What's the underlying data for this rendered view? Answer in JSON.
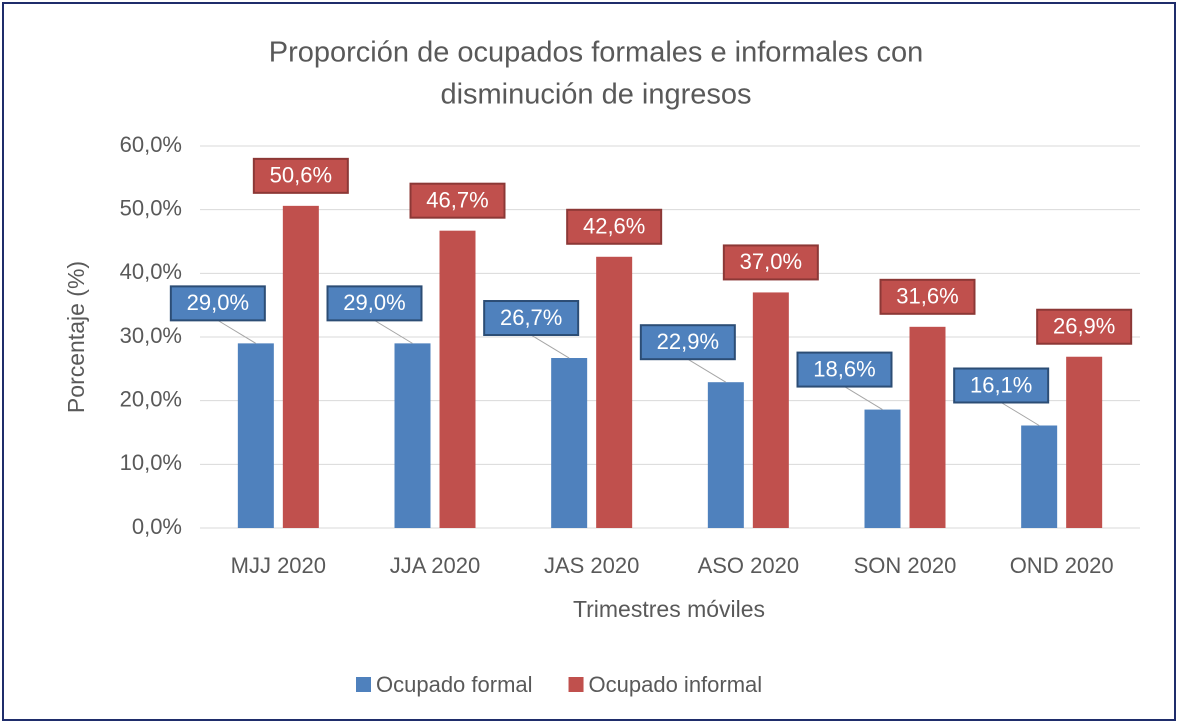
{
  "chart_data": {
    "type": "bar",
    "title": "Proporción de ocupados formales e informales con disminución de ingresos",
    "title_lines": [
      "Proporción de ocupados formales e informales con",
      "disminución de ingresos"
    ],
    "x_label": "Trimestres móviles",
    "y_label": "Porcentaje (%)",
    "categories": [
      "MJJ 2020",
      "JJA 2020",
      "JAS 2020",
      "ASO 2020",
      "SON 2020",
      "OND 2020"
    ],
    "series": [
      {
        "name": "Ocupado formal",
        "color": "#4f81bd",
        "values": [
          29.0,
          29.0,
          26.7,
          22.9,
          18.6,
          16.1
        ],
        "value_labels": [
          "29,0%",
          "29,0%",
          "26,7%",
          "22,9%",
          "18,6%",
          "16,1%"
        ]
      },
      {
        "name": "Ocupado informal",
        "color": "#c0504d",
        "values": [
          50.6,
          46.7,
          42.6,
          37.0,
          31.6,
          26.9
        ],
        "value_labels": [
          "50,6%",
          "46,7%",
          "42,6%",
          "37,0%",
          "31,6%",
          "26,9%"
        ]
      }
    ],
    "ylim": [
      0,
      60
    ],
    "yticks": [
      {
        "value": 0,
        "label": "0,0%"
      },
      {
        "value": 10,
        "label": "10,0%"
      },
      {
        "value": 20,
        "label": "20,0%"
      },
      {
        "value": 30,
        "label": "30,0%"
      },
      {
        "value": 40,
        "label": "40,0%"
      },
      {
        "value": 50,
        "label": "50,0%"
      },
      {
        "value": 60,
        "label": "60,0%"
      }
    ],
    "grid": true,
    "legend": "bottom"
  }
}
